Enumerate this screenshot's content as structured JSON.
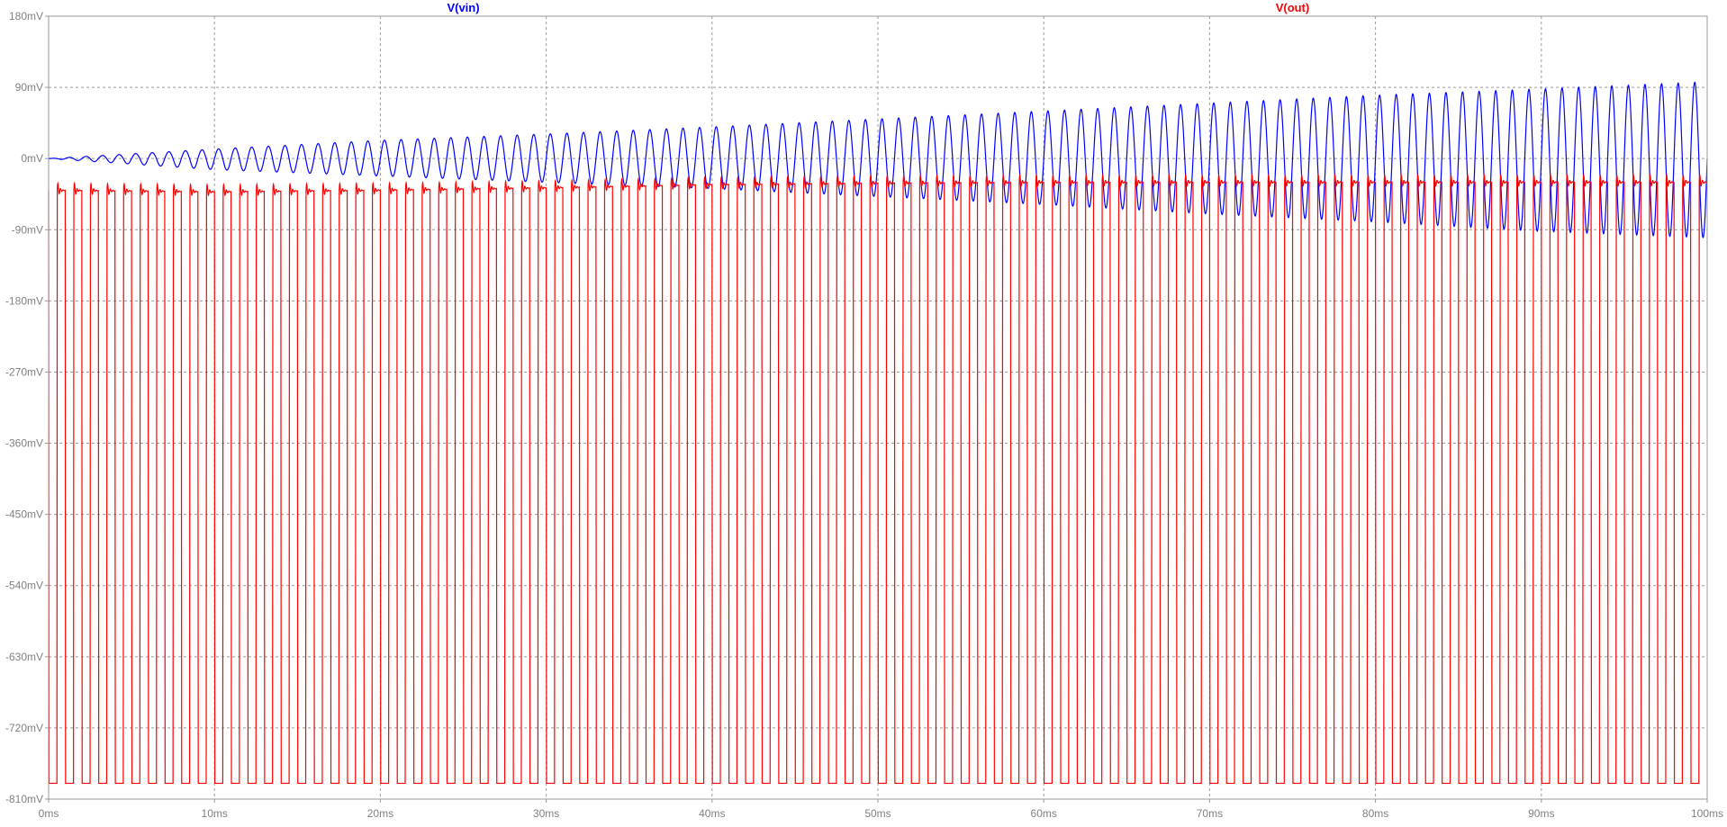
{
  "window": {
    "background": "#ffffff"
  },
  "chart_data": {
    "type": "line",
    "title": "",
    "xlabel": "",
    "ylabel": "",
    "x_unit": "ms",
    "y_unit": "mV",
    "xlim": [
      0,
      100
    ],
    "ylim": [
      -810,
      180
    ],
    "grid": true,
    "x_ticks": [
      0,
      10,
      20,
      30,
      40,
      50,
      60,
      70,
      80,
      90,
      100
    ],
    "x_tick_labels": [
      "0ms",
      "10ms",
      "20ms",
      "30ms",
      "40ms",
      "50ms",
      "60ms",
      "70ms",
      "80ms",
      "90ms",
      "100ms"
    ],
    "y_ticks": [
      180,
      90,
      0,
      -90,
      -180,
      -270,
      -360,
      -450,
      -540,
      -630,
      -720,
      -810
    ],
    "y_tick_labels": [
      "180mV",
      "90mV",
      "0mV",
      "-90mV",
      "-180mV",
      "-270mV",
      "-360mV",
      "-450mV",
      "-540mV",
      "-630mV",
      "-720mV",
      "-810mV"
    ],
    "legend_placement": "top",
    "series": [
      {
        "name": "V(vin)",
        "color": "#0000ff",
        "waveform": "growing sinusoid centred near 0mV",
        "frequency_khz": 1.0,
        "x_envelope": [
          0,
          10,
          20,
          30,
          40,
          50,
          60,
          70,
          80,
          90,
          100
        ],
        "peak_envelope": [
          0,
          12,
          23,
          31,
          40,
          50,
          60,
          70,
          80,
          88,
          97
        ],
        "trough_envelope": [
          0,
          -14,
          -22,
          -30,
          -38,
          -48,
          -58,
          -70,
          -80,
          -92,
          -100
        ]
      },
      {
        "name": "V(out)",
        "color": "#ff0000",
        "waveform": "rectangular pulse train with ringing baseline",
        "frequency_khz": 1.0,
        "pulse_low_mv": -790,
        "pulse_width_ms": 0.5,
        "x_envelope": [
          0,
          10,
          20,
          30,
          40,
          50,
          60,
          70,
          80,
          90,
          100
        ],
        "baseline_mv": [
          -40,
          -42,
          -40,
          -37,
          -33,
          -31,
          -30,
          -30,
          -30,
          -30,
          -30
        ]
      }
    ]
  }
}
